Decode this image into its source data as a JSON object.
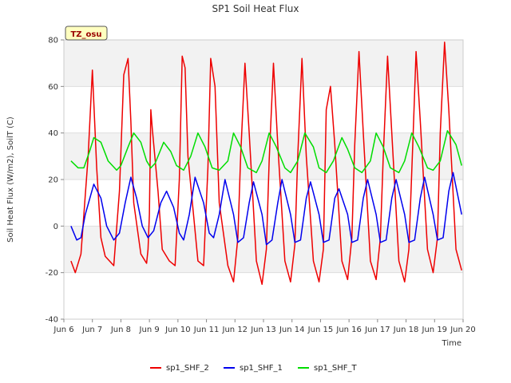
{
  "chart_data": {
    "type": "line",
    "title": "SP1 Soil Heat Flux",
    "xlabel": "Time",
    "ylabel": "Soil Heat Flux (W/m2), SoilT (C)",
    "ylim": [
      -40,
      80
    ],
    "xlim": [
      6,
      20
    ],
    "yticks": [
      -40,
      -20,
      0,
      20,
      40,
      60,
      80
    ],
    "xticks": [
      6,
      7,
      8,
      9,
      10,
      11,
      12,
      13,
      14,
      15,
      16,
      17,
      18,
      19,
      20
    ],
    "xtick_labels": [
      "Jun 6",
      "Jun 7",
      "Jun 8",
      "Jun 9",
      "Jun 10",
      "Jun 11",
      "Jun 12",
      "Jun 13",
      "Jun 14",
      "Jun 15",
      "Jun 16",
      "Jun 17",
      "Jun 18",
      "Jun 19",
      "Jun 20"
    ],
    "grid": true,
    "shaded_bands": [
      [
        60,
        80
      ],
      [
        20,
        40
      ],
      [
        -20,
        0
      ]
    ],
    "legend_position": "bottom",
    "annotation": "TZ_osu",
    "series": [
      {
        "name": "sp1_SHF_2",
        "color": "#ee0000",
        "x": [
          6.25,
          6.4,
          6.6,
          6.85,
          7.0,
          7.15,
          7.3,
          7.45,
          7.75,
          7.95,
          8.1,
          8.25,
          8.35,
          8.45,
          8.7,
          8.9,
          8.95,
          9.0,
          9.05,
          9.1,
          9.3,
          9.45,
          9.7,
          9.9,
          10.05,
          10.15,
          10.25,
          10.35,
          10.7,
          10.9,
          11.05,
          11.15,
          11.3,
          11.45,
          11.75,
          11.95,
          12.1,
          12.2,
          12.35,
          12.5,
          12.75,
          12.95,
          13.1,
          13.2,
          13.35,
          13.5,
          13.75,
          13.95,
          14.1,
          14.2,
          14.35,
          14.5,
          14.75,
          14.95,
          15.1,
          15.2,
          15.35,
          15.5,
          15.75,
          15.95,
          16.1,
          16.2,
          16.35,
          16.5,
          16.75,
          16.95,
          17.1,
          17.2,
          17.35,
          17.5,
          17.75,
          17.95,
          18.1,
          18.25,
          18.35,
          18.5,
          18.75,
          18.95,
          19.1,
          19.2,
          19.35,
          19.5,
          19.75,
          19.95
        ],
        "y": [
          -15,
          -20,
          -12,
          30,
          67,
          25,
          -5,
          -13,
          -17,
          15,
          65,
          72,
          45,
          10,
          -12,
          -16,
          -10,
          5,
          50,
          42,
          15,
          -10,
          -15,
          -17,
          20,
          73,
          68,
          30,
          -15,
          -17,
          25,
          72,
          60,
          10,
          -17,
          -24,
          -5,
          30,
          70,
          40,
          -15,
          -25,
          -10,
          28,
          70,
          35,
          -15,
          -24,
          -8,
          30,
          72,
          30,
          -15,
          -24,
          -10,
          50,
          60,
          35,
          -15,
          -23,
          -5,
          35,
          75,
          40,
          -15,
          -23,
          -5,
          30,
          73,
          40,
          -15,
          -24,
          -10,
          40,
          75,
          45,
          -10,
          -20,
          -5,
          40,
          79,
          50,
          -10,
          -19
        ]
      },
      {
        "name": "sp1_SHF_1",
        "color": "#0000ee",
        "x": [
          6.25,
          6.45,
          6.6,
          6.75,
          7.05,
          7.3,
          7.5,
          7.75,
          7.95,
          8.15,
          8.35,
          8.55,
          8.75,
          8.95,
          9.15,
          9.4,
          9.6,
          9.85,
          10.05,
          10.2,
          10.4,
          10.6,
          10.9,
          11.1,
          11.25,
          11.45,
          11.65,
          11.95,
          12.1,
          12.3,
          12.5,
          12.65,
          12.95,
          13.1,
          13.3,
          13.5,
          13.65,
          13.95,
          14.1,
          14.3,
          14.5,
          14.65,
          14.95,
          15.1,
          15.3,
          15.5,
          15.65,
          15.95,
          16.1,
          16.3,
          16.5,
          16.65,
          16.95,
          17.1,
          17.3,
          17.5,
          17.65,
          17.95,
          18.1,
          18.3,
          18.5,
          18.65,
          18.95,
          19.1,
          19.3,
          19.5,
          19.65,
          19.95
        ],
        "y": [
          0,
          -6,
          -5,
          5,
          18,
          12,
          0,
          -6,
          -3,
          10,
          21,
          12,
          0,
          -5,
          -2,
          10,
          15,
          8,
          -3,
          -6,
          5,
          21,
          10,
          -3,
          -5,
          5,
          20,
          5,
          -7,
          -5,
          10,
          19,
          5,
          -8,
          -6,
          10,
          20,
          5,
          -7,
          -6,
          12,
          19,
          5,
          -7,
          -6,
          12,
          16,
          5,
          -7,
          -6,
          12,
          20,
          5,
          -7,
          -6,
          12,
          20,
          5,
          -7,
          -6,
          12,
          21,
          5,
          -6,
          -5,
          15,
          23,
          5
        ]
      },
      {
        "name": "sp1_SHF_T",
        "color": "#00dd00",
        "x": [
          6.25,
          6.5,
          6.7,
          6.9,
          7.05,
          7.3,
          7.55,
          7.85,
          8.0,
          8.25,
          8.45,
          8.7,
          8.9,
          9.05,
          9.2,
          9.5,
          9.75,
          9.95,
          10.2,
          10.45,
          10.7,
          10.95,
          11.2,
          11.45,
          11.75,
          11.95,
          12.2,
          12.45,
          12.75,
          12.95,
          13.2,
          13.45,
          13.75,
          13.95,
          14.2,
          14.45,
          14.75,
          14.95,
          15.2,
          15.45,
          15.75,
          15.95,
          16.2,
          16.45,
          16.75,
          16.95,
          17.2,
          17.45,
          17.75,
          17.95,
          18.2,
          18.45,
          18.75,
          18.95,
          19.2,
          19.45,
          19.75,
          19.95
        ],
        "y": [
          28,
          25,
          25,
          32,
          38,
          36,
          28,
          24,
          26,
          34,
          40,
          36,
          28,
          25,
          27,
          36,
          32,
          26,
          24,
          30,
          40,
          34,
          25,
          24,
          28,
          40,
          34,
          25,
          23,
          28,
          40,
          34,
          25,
          23,
          28,
          40,
          34,
          25,
          23,
          28,
          38,
          33,
          25,
          23,
          28,
          40,
          34,
          25,
          23,
          28,
          40,
          34,
          25,
          24,
          28,
          41,
          35,
          26
        ]
      }
    ]
  }
}
